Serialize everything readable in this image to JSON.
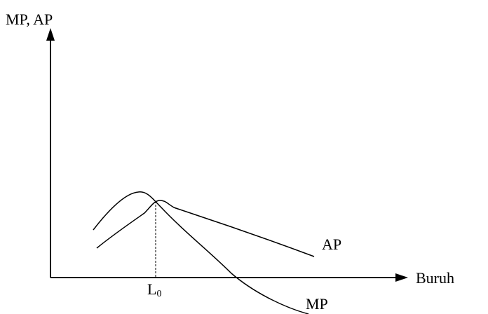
{
  "axes": {
    "y_label": "MP, AP",
    "x_label": "Buruh"
  },
  "curves": {
    "ap_label": "AP",
    "mp_label": "MP"
  },
  "marker": {
    "base": "L",
    "subscript": "0"
  }
}
